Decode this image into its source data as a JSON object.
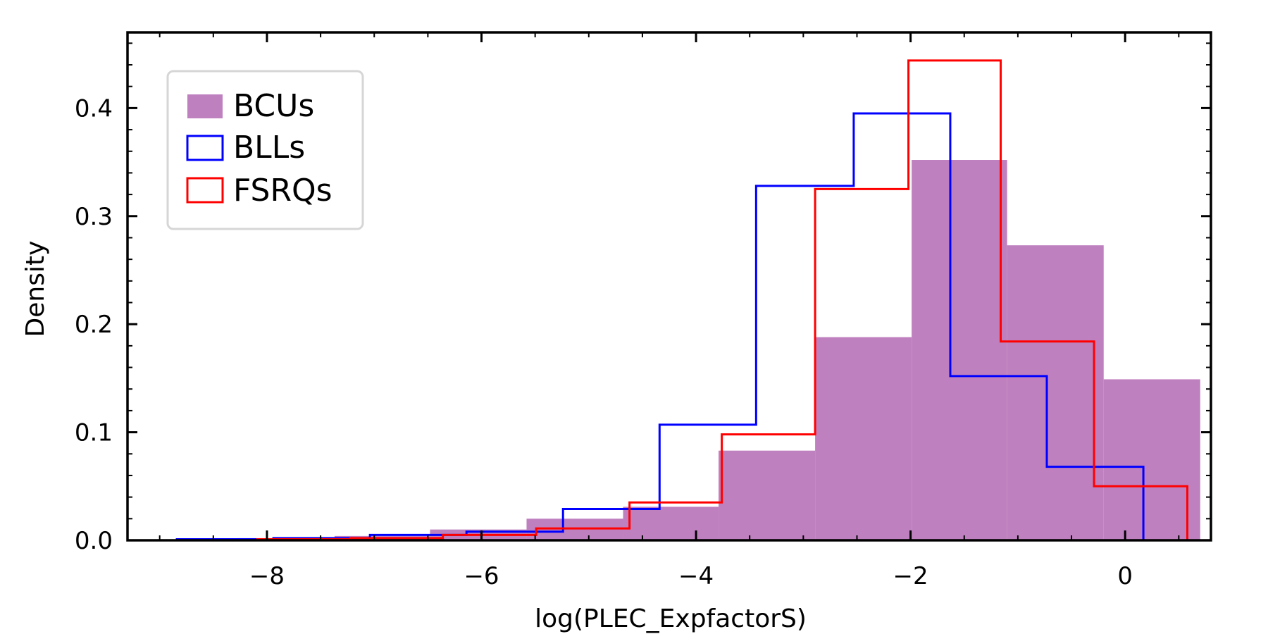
{
  "chart_data": {
    "type": "histogram",
    "title": "",
    "xlabel": "log(PLEC_ExpfactorS)",
    "ylabel": "Density",
    "xlim": [
      -9.3,
      0.8
    ],
    "ylim": [
      0.0,
      0.47
    ],
    "xticks": [
      -8,
      -6,
      -4,
      -2,
      0
    ],
    "xtick_labels": [
      "−8",
      "−6",
      "−4",
      "−2",
      "0"
    ],
    "yticks": [
      0.0,
      0.1,
      0.2,
      0.3,
      0.4
    ],
    "ytick_labels": [
      "0.0",
      "0.1",
      "0.2",
      "0.3",
      "0.4"
    ],
    "grid": false,
    "legend_position": "top-left",
    "series": [
      {
        "name": "BCUs",
        "style": "filled",
        "color": "#bf80bf",
        "bin_edges": [
          -8.27,
          -7.37,
          -6.48,
          -5.58,
          -4.68,
          -3.79,
          -2.89,
          -1.99,
          -1.1,
          -0.2,
          0.7
        ],
        "values": [
          0.002,
          0.004,
          0.01,
          0.02,
          0.031,
          0.083,
          0.188,
          0.352,
          0.273,
          0.149
        ]
      },
      {
        "name": "BLLs",
        "style": "step",
        "color": "#0000ff",
        "bin_edges": [
          -8.84,
          -7.94,
          -7.04,
          -6.14,
          -5.24,
          -4.34,
          -3.44,
          -2.53,
          -1.63,
          -0.73,
          0.17
        ],
        "values": [
          0.001,
          0.002,
          0.005,
          0.008,
          0.029,
          0.107,
          0.328,
          0.395,
          0.152,
          0.068
        ]
      },
      {
        "name": "FSRQs",
        "style": "step",
        "color": "#ff0000",
        "bin_edges": [
          -8.09,
          -7.22,
          -6.36,
          -5.49,
          -4.62,
          -3.76,
          -2.89,
          -2.02,
          -1.16,
          -0.29,
          0.58
        ],
        "values": [
          0.001,
          0.002,
          0.005,
          0.011,
          0.035,
          0.098,
          0.325,
          0.444,
          0.184,
          0.05
        ]
      }
    ]
  }
}
